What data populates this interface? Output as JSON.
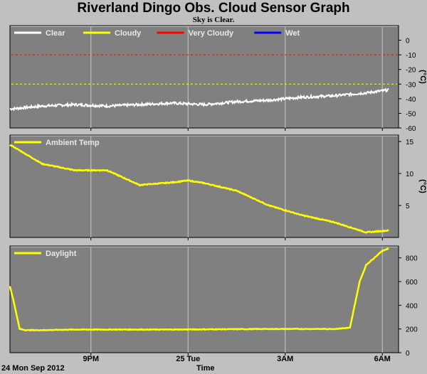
{
  "title": "Riverland Dingo Obs. Cloud Sensor Graph",
  "subtitle": "Sky is Clear.",
  "date_label": "24 Mon Sep 2012",
  "xlabel": "Time",
  "colors": {
    "background": "#c0c0c0",
    "plot_bg": "#808080",
    "grid": "#c8c8c8",
    "clear": "#ffffff",
    "cloudy": "#ffff00",
    "very_cloudy": "#ff0000",
    "wet": "#0000ff"
  },
  "chart_data": [
    {
      "type": "line",
      "name": "sky-temperature",
      "ylabel": "(°C)",
      "ylim": [
        -60,
        10
      ],
      "yticks": [
        "0",
        "-10",
        "-20",
        "-30",
        "-40",
        "-50",
        "-60"
      ],
      "ytick_values": [
        0,
        -10,
        -20,
        -30,
        -40,
        -50,
        -60
      ],
      "legend": [
        "Clear",
        "Cloudy",
        "Very Cloudy",
        "Wet"
      ],
      "thresholds": [
        {
          "label": "Very Cloudy",
          "value": -10,
          "color": "#ff0000"
        },
        {
          "label": "Cloudy",
          "value": -30,
          "color": "#ffff00"
        }
      ],
      "x_hours": [
        0,
        1,
        2,
        3,
        4,
        5,
        6,
        7,
        8,
        9,
        10,
        11,
        11.7
      ],
      "series": [
        {
          "name": "Clear",
          "color": "#ffffff",
          "values": [
            -47,
            -45,
            -44,
            -45,
            -44,
            -43,
            -44,
            -42,
            -41,
            -39,
            -38,
            -36,
            -34
          ]
        }
      ]
    },
    {
      "type": "line",
      "name": "ambient-temperature",
      "ylabel": "(°C)",
      "ylim": [
        0,
        16
      ],
      "yticks": [
        "15",
        "10",
        "5"
      ],
      "ytick_values": [
        15,
        10,
        5
      ],
      "legend": [
        "Ambient Temp"
      ],
      "x_hours": [
        0,
        1,
        2,
        3,
        4,
        5,
        5.5,
        6,
        7,
        8,
        9,
        10,
        11,
        11.7
      ],
      "series": [
        {
          "name": "Ambient Temp",
          "color": "#ffff00",
          "values": [
            14.5,
            11.5,
            10.5,
            10.5,
            8.2,
            8.6,
            8.9,
            8.5,
            7.3,
            5,
            3.5,
            2.4,
            0.8,
            1.1
          ]
        }
      ]
    },
    {
      "type": "line",
      "name": "daylight",
      "ylabel": "",
      "ylim": [
        0,
        900
      ],
      "yticks": [
        "800",
        "600",
        "400",
        "200",
        "0"
      ],
      "ytick_values": [
        800,
        600,
        400,
        200,
        0
      ],
      "legend": [
        "Daylight"
      ],
      "x_hours": [
        0,
        0.1,
        0.3,
        0.5,
        1,
        2,
        5,
        8,
        10,
        10.5,
        10.8,
        11,
        11.5,
        11.7
      ],
      "series": [
        {
          "name": "Daylight",
          "color": "#ffff00",
          "values": [
            560,
            450,
            200,
            190,
            190,
            195,
            195,
            200,
            200,
            210,
            600,
            740,
            860,
            880
          ]
        }
      ]
    }
  ],
  "x_axis": {
    "hours_span": 12,
    "tick_labels": [
      "9PM",
      "25 Tue",
      "3AM",
      "6AM"
    ],
    "tick_hours": [
      2.5,
      5.5,
      8.5,
      11.5
    ]
  }
}
